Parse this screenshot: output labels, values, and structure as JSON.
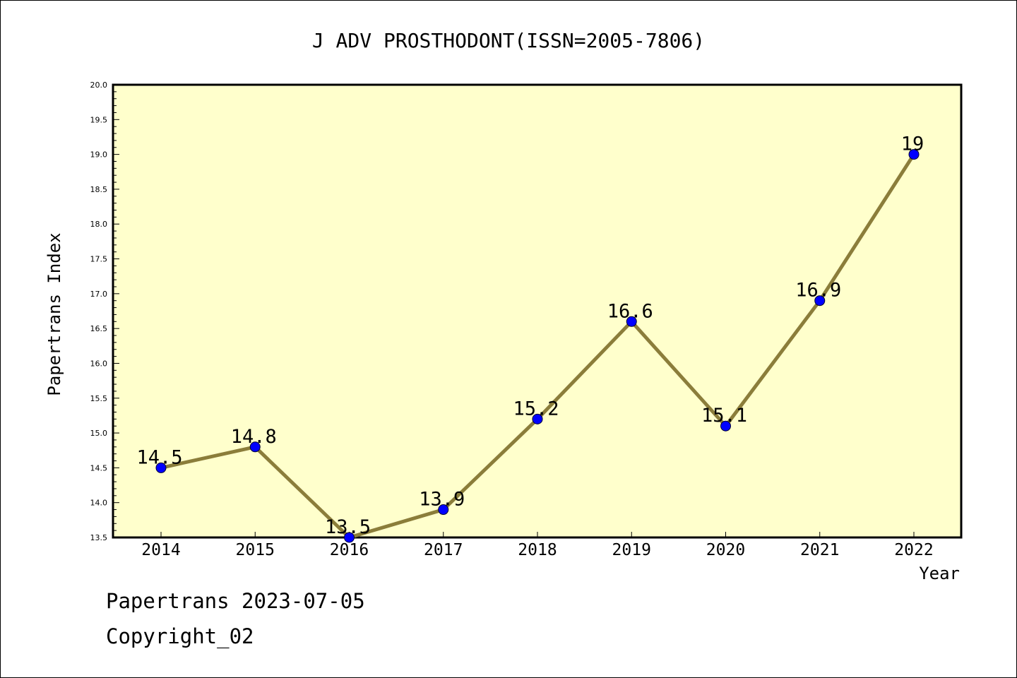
{
  "colors": {
    "plot_background": "#ffffcc",
    "line": "#8b7d3a",
    "marker": "#0000ff",
    "axis": "#000000"
  },
  "footer": {
    "line1": "Papertrans 2023-07-05",
    "line2": "Copyright_02"
  },
  "chart_data": {
    "type": "line",
    "title": "J ADV PROSTHODONT(ISSN=2005-7806)",
    "xlabel": "Year",
    "ylabel": "Papertrans Index",
    "categories": [
      "2014",
      "2015",
      "2016",
      "2017",
      "2018",
      "2019",
      "2020",
      "2021",
      "2022"
    ],
    "series": [
      {
        "values": [
          14.5,
          14.8,
          13.5,
          13.9,
          15.2,
          16.6,
          15.1,
          16.9,
          19
        ]
      }
    ],
    "data_labels": [
      "14.5",
      "14.8",
      "13.5",
      "13.9",
      "15.2",
      "16.6",
      "15.1",
      "16.9",
      "19"
    ],
    "ylim": [
      13.5,
      20.0
    ],
    "yticks": [
      "13.5",
      "14.0",
      "14.5",
      "15.0",
      "15.5",
      "16.0",
      "16.5",
      "17.0",
      "17.5",
      "18.0",
      "18.5",
      "19.0",
      "19.5",
      "20.0"
    ],
    "grid": false,
    "legend": "none"
  }
}
